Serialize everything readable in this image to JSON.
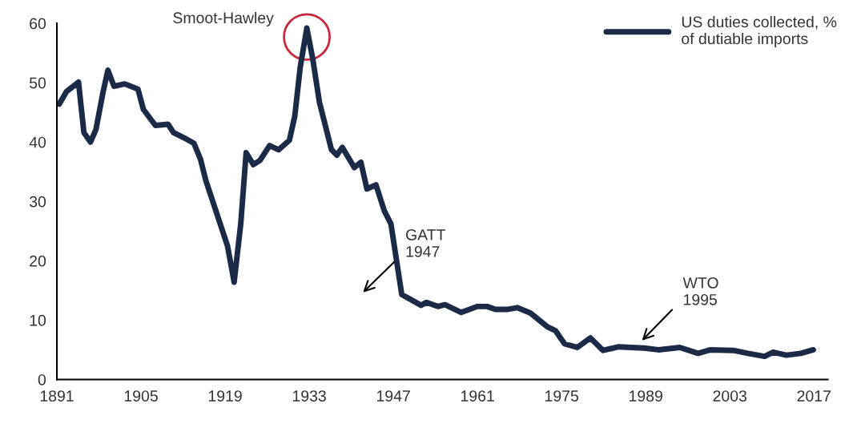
{
  "chart_data": {
    "type": "line",
    "x": [
      1891.4,
      1892.6,
      1894.6,
      1895.5,
      1896.6,
      1897.5,
      1898.7,
      1899.5,
      1900.5,
      1902.3,
      1904.5,
      1905.4,
      1907.4,
      1909.5,
      1910.4,
      1912.2,
      1913.8,
      1914.9,
      1915.8,
      1919.4,
      1920.5,
      1921.6,
      1922.5,
      1923.7,
      1924.8,
      1926.4,
      1927.9,
      1929.7,
      1930.6,
      1931.5,
      1932.6,
      1933.6,
      1934.7,
      1936.7,
      1937.6,
      1938.5,
      1940.5,
      1941.6,
      1942.6,
      1944.1,
      1945.5,
      1946.6,
      1948.4,
      1951.6,
      1952.5,
      1954.4,
      1955.6,
      1958.3,
      1961.0,
      1962.6,
      1964.0,
      1965.9,
      1967.6,
      1969.8,
      1972.6,
      1974.0,
      1975.5,
      1977.6,
      1979.8,
      1981.9,
      1984.5,
      1988.7,
      1991.1,
      1994.7,
      1997.7,
      1999.8,
      2003.6,
      2006.0,
      2008.8,
      2010.2,
      2012.4,
      2014.8,
      2016.9
    ],
    "series": [
      {
        "name": "US duties collected, %\nof dutiable imports",
        "color": "#1b2a47",
        "values": [
          46.4,
          48.5,
          50.1,
          41.6,
          40.0,
          42.1,
          48.5,
          52.1,
          49.4,
          49.8,
          48.9,
          45.5,
          42.8,
          43.0,
          41.6,
          40.7,
          39.8,
          37.1,
          33.5,
          22.5,
          16.4,
          26.2,
          38.2,
          36.2,
          36.9,
          39.4,
          38.7,
          40.3,
          44.4,
          52.6,
          59.2,
          53.9,
          46.7,
          38.7,
          37.8,
          39.1,
          35.7,
          36.6,
          32.1,
          32.8,
          28.4,
          26.2,
          14.3,
          12.5,
          13.0,
          12.3,
          12.6,
          11.3,
          12.3,
          12.3,
          11.8,
          11.8,
          12.1,
          11.2,
          8.9,
          8.2,
          6.0,
          5.4,
          7.0,
          4.9,
          5.5,
          5.3,
          5.0,
          5.4,
          4.4,
          5.0,
          4.9,
          4.4,
          3.9,
          4.6,
          4.1,
          4.4,
          5.0
        ]
      }
    ],
    "xlim": [
      1891,
      2019.3
    ],
    "ylim": [
      0,
      60
    ],
    "xticks": [
      1891,
      1905,
      1919,
      1933,
      1947,
      1961,
      1975,
      1989,
      2003,
      2017
    ],
    "yticks": [
      0,
      10,
      20,
      30,
      40,
      50,
      60
    ],
    "annotations": [
      {
        "text": "Smoot-Hawley",
        "x": 1932.6,
        "y": 59.2
      },
      "GATT\n1947",
      "WTO\n1995"
    ],
    "legend": "top right",
    "grid": false,
    "line_style": "solid",
    "marker": "none"
  }
}
